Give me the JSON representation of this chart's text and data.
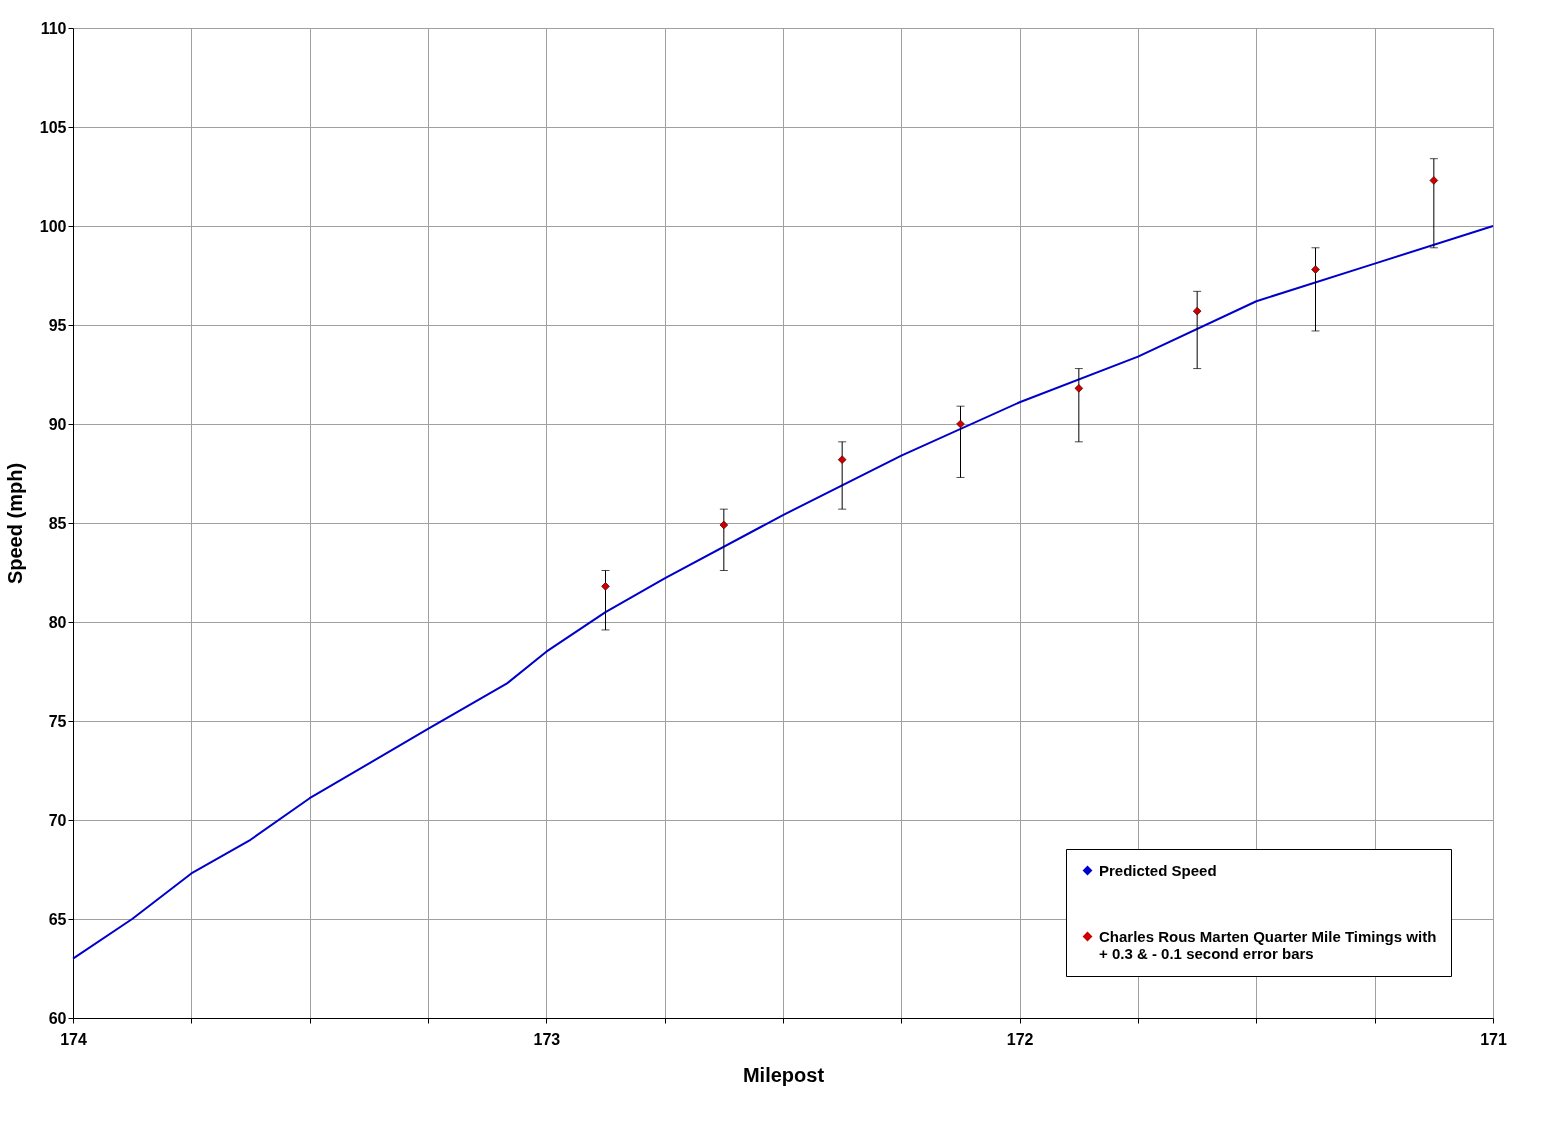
{
  "chart_data": {
    "type": "line",
    "xlabel": "Milepost",
    "ylabel": "Speed (mph)",
    "xlim": [
      174,
      171
    ],
    "ylim": [
      60,
      110
    ],
    "xticks": [
      174,
      {
        "value": 173.75,
        "label": null
      },
      {
        "value": 173.5,
        "label": null
      },
      {
        "value": 173.25,
        "label": null
      },
      173,
      {
        "value": 172.75,
        "label": null
      },
      {
        "value": 172.5,
        "label": null
      },
      {
        "value": 172.25,
        "label": null
      },
      172,
      {
        "value": 171.75,
        "label": null
      },
      {
        "value": 171.5,
        "label": null
      },
      {
        "value": 171.25,
        "label": null
      },
      171
    ],
    "yticks": [
      60,
      65,
      70,
      75,
      80,
      85,
      90,
      95,
      100,
      105,
      110
    ],
    "grid": true,
    "legend": "bottom right",
    "line_style": "solid",
    "series": [
      {
        "name": "Predicted Speed",
        "color": "#0000cc",
        "marker": "none",
        "x": [
          174,
          173.875,
          173.75,
          173.625,
          173.5,
          173.25,
          173.083,
          173.0,
          172.875,
          172.75,
          172.5,
          172.25,
          172.0,
          171.75,
          171.5,
          171.25,
          171.0
        ],
        "values": [
          63.0,
          65.0,
          67.3,
          69.0,
          71.1,
          74.6,
          76.9,
          78.5,
          80.5,
          82.2,
          85.4,
          88.4,
          91.1,
          93.4,
          96.2,
          98.1,
          100.0
        ]
      },
      {
        "name": "Charles Rous Marten Quarter Mile Timings with\n+ 0.3 & - 0.1 second error bars",
        "color": "#cc0000",
        "type": "scatter",
        "marker": "diamond",
        "x": [
          172.875,
          172.625,
          172.375,
          172.125,
          171.875,
          171.625,
          171.375,
          171.125
        ],
        "values": [
          81.8,
          84.9,
          88.2,
          90.0,
          91.8,
          95.7,
          97.8,
          102.3
        ],
        "errors": [
          [
            79.6,
            82.6
          ],
          [
            82.6,
            85.7
          ],
          [
            85.7,
            89.1
          ],
          [
            87.3,
            90.9
          ],
          [
            89.1,
            92.8
          ],
          [
            92.8,
            96.7
          ],
          [
            94.7,
            98.9
          ],
          [
            98.9,
            103.4
          ]
        ]
      }
    ]
  }
}
